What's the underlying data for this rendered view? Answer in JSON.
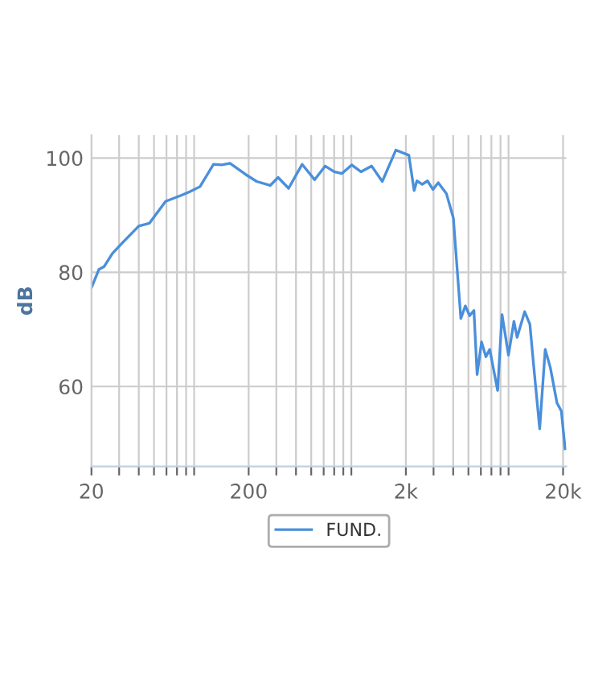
{
  "chart_data": {
    "type": "line",
    "ylabel": "dB",
    "log": "x",
    "grid": true,
    "legend": "bottom",
    "marker": "none",
    "line_style": "solid",
    "xlim": [
      20,
      21000
    ],
    "ylim": [
      46,
      104
    ],
    "xticks": [
      20,
      {
        "value": 30,
        "label": null
      },
      {
        "value": 40,
        "label": null
      },
      {
        "value": 50,
        "label": null
      },
      {
        "value": 60,
        "label": null
      },
      {
        "value": 70,
        "label": null
      },
      {
        "value": 80,
        "label": null
      },
      {
        "value": 90,
        "label": null
      },
      200,
      {
        "value": 300,
        "label": null
      },
      {
        "value": 400,
        "label": null
      },
      {
        "value": 500,
        "label": null
      },
      {
        "value": 600,
        "label": null
      },
      {
        "value": 700,
        "label": null
      },
      {
        "value": 800,
        "label": null
      },
      {
        "value": 900,
        "label": null
      },
      {
        "value": 2000,
        "label": "2k"
      },
      {
        "value": 3000,
        "label": null
      },
      {
        "value": 4000,
        "label": null
      },
      {
        "value": 5000,
        "label": null
      },
      {
        "value": 6000,
        "label": null
      },
      {
        "value": 7000,
        "label": null
      },
      {
        "value": 8000,
        "label": null
      },
      {
        "value": 9000,
        "label": null
      },
      {
        "value": 20000,
        "label": "20k"
      }
    ],
    "yticks": [
      60,
      80,
      100
    ],
    "series": [
      {
        "name": "FUND.",
        "color": "#4a8fdb",
        "x": [
          20,
          22.3,
          24.1,
          27.2,
          31.6,
          40,
          46.8,
          59.2,
          75,
          84.4,
          98.1,
          119.5,
          135,
          152,
          192,
          225,
          274,
          308,
          359,
          438,
          526,
          614,
          700,
          785,
          904,
          1036,
          1212,
          1416,
          1728,
          2089,
          2257,
          2352,
          2542,
          2750,
          2972,
          3213,
          3619,
          4010,
          4475,
          4780,
          5090,
          5420,
          5680,
          6060,
          6460,
          6830,
          7670,
          8180,
          8990,
          9740,
          10200,
          11400,
          12300,
          13100,
          14200,
          15400,
          16600,
          18300,
          19500,
          20600
        ],
        "values": [
          77.3,
          80.5,
          81,
          83.3,
          85.2,
          88.1,
          88.6,
          92.4,
          93.5,
          94.1,
          95,
          98.9,
          98.8,
          99.1,
          97.1,
          95.9,
          95.2,
          96.6,
          94.7,
          98.9,
          96.2,
          98.6,
          97.6,
          97.3,
          98.8,
          97.6,
          98.6,
          95.9,
          101.4,
          100.5,
          94.3,
          96,
          95.4,
          96,
          94.5,
          95.7,
          93.8,
          89.5,
          71.9,
          74.1,
          72.4,
          73.3,
          62.1,
          67.8,
          65.2,
          66.5,
          59.3,
          72.6,
          65.5,
          71.4,
          68.6,
          73.1,
          70.9,
          62.7,
          52.6,
          66.5,
          63.3,
          57.1,
          55.7,
          49.1
        ]
      }
    ]
  }
}
